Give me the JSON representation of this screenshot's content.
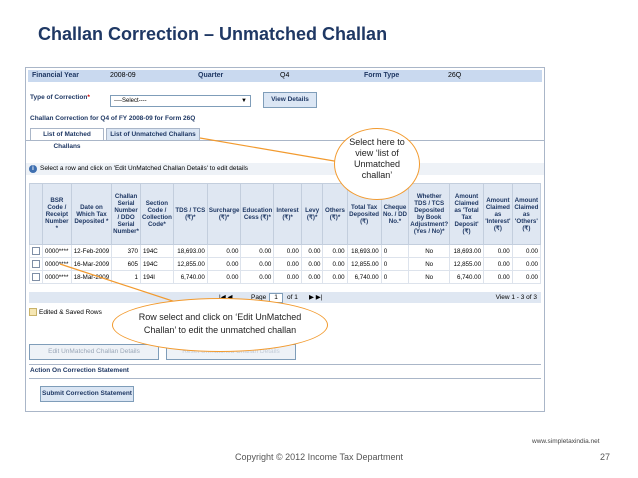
{
  "slide": {
    "title": "Challan Correction – Unmatched Challan",
    "copyright": "Copyright © 2012 Income Tax Department",
    "site": "www.simpletaxindia.net",
    "page_number": "27"
  },
  "header": {
    "fy_label": "Financial Year",
    "fy_value": "2008-09",
    "quarter_label": "Quarter",
    "quarter_value": "Q4",
    "form_label": "Form Type",
    "form_value": "26Q"
  },
  "correction": {
    "type_label": "Type of Correction",
    "required_mark": "*",
    "select_value": "----Select----",
    "view_button": "View Details",
    "subtitle": "Challan Correction for Q4 of FY 2008-09 for Form 26Q"
  },
  "tabs": [
    {
      "label": "List of Matched Challans"
    },
    {
      "label": "List of Unmatched Challans"
    }
  ],
  "info_text": "Select a row and click on 'Edit UnMatched Challan Details' to edit details",
  "table": {
    "headers": [
      "",
      "BSR Code / Receipt Number *",
      "Date on Which Tax Deposited *",
      "Challan Serial Number / DDO Serial Number*",
      "Section Code / Collection Code*",
      "TDS / TCS (₹)*",
      "Surcharge (₹)*",
      "Education Cess (₹)*",
      "Interest (₹)*",
      "Levy (₹)*",
      "Others (₹)*",
      "Total Tax Deposited (₹)",
      "Cheque No. / DD No.*",
      "Whether TDS / TCS Deposited by Book Adjustment? (Yes / No)*",
      "Amount Claimed as 'Total Tax Deposit' (₹)",
      "Amount Claimed as 'Interest' (₹)",
      "Amount Claimed as 'Others' (₹)"
    ],
    "rows": [
      [
        "0000****",
        "12-Feb-2009",
        "370",
        "194C",
        "18,693.00",
        "0.00",
        "0.00",
        "0.00",
        "0.00",
        "0.00",
        "18,693.00",
        "0",
        "No",
        "18,693.00",
        "0.00",
        "0.00"
      ],
      [
        "0000****",
        "16-Mar-2009",
        "605",
        "194C",
        "12,855.00",
        "0.00",
        "0.00",
        "0.00",
        "0.00",
        "0.00",
        "12,855.00",
        "0",
        "No",
        "12,855.00",
        "0.00",
        "0.00"
      ],
      [
        "0000****",
        "18-Mar-2009",
        "1",
        "194I",
        "6,740.00",
        "0.00",
        "0.00",
        "0.00",
        "0.00",
        "0.00",
        "6,740.00",
        "0",
        "No",
        "6,740.00",
        "0.00",
        "0.00"
      ]
    ]
  },
  "pager": {
    "page_label": "Page",
    "page_value": "1",
    "of_label": "of 1",
    "view_text": "View 1 - 3 of 3"
  },
  "legend": "Edited & Saved Rows",
  "buttons": {
    "edit": "Edit UnMatched Challan Details",
    "reset": "Reset Unmatched Challan Details",
    "submit": "Submit Correction Statement"
  },
  "action_title": "Action On Correction Statement",
  "callouts": {
    "tab_note": [
      "Select here to",
      "view ‘list of",
      "Unmatched",
      "challan’"
    ],
    "row_note": [
      "Row select and click on ‘Edit UnMatched",
      "Challan’ to edit the unmatched challan"
    ]
  },
  "colors": {
    "title": "#1f3864",
    "header_bg": "#c9d9ef",
    "callout_border": "#f29a2e"
  }
}
